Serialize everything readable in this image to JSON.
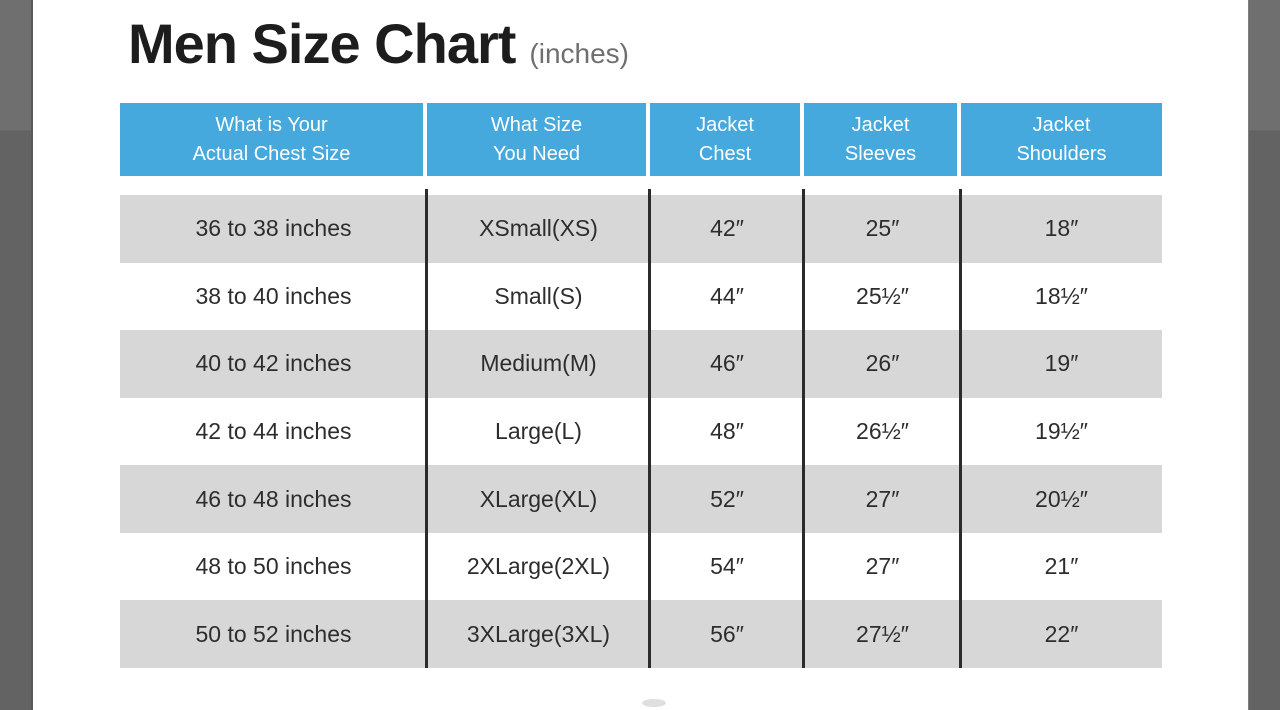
{
  "title": {
    "text": "Men Size Chart",
    "suffix": "(inches)"
  },
  "colors": {
    "header_bg": "#46a9dd",
    "header_text": "#ffffff",
    "row_alt": "#d7d7d8",
    "divider": "#2b2b2b",
    "pillar_top": "#6f6f6f",
    "pillar_bottom": "#636363",
    "title_color": "#1d1d1d",
    "subtitle_color": "#6f6f6f",
    "cell_color": "#2d2d2d"
  },
  "table": {
    "headers": [
      [
        "What is Your",
        "Actual Chest Size"
      ],
      [
        "What Size",
        "You Need"
      ],
      [
        "Jacket",
        "Chest"
      ],
      [
        "Jacket",
        "Sleeves"
      ],
      [
        "Jacket",
        "Shoulders"
      ]
    ]
  },
  "chart_data": {
    "type": "table",
    "title": "Men Size Chart",
    "subtitle": "(inches)",
    "columns": [
      "What is Your Actual Chest Size",
      "What Size You Need",
      "Jacket Chest",
      "Jacket Sleeves",
      "Jacket Shoulders"
    ],
    "rows": [
      [
        "36 to 38 inches",
        "XSmall(XS)",
        "42″",
        "25″",
        "18″"
      ],
      [
        "38 to 40 inches",
        "Small(S)",
        "44″",
        "25½″",
        "18½″"
      ],
      [
        "40 to 42 inches",
        "Medium(M)",
        "46″",
        "26″",
        "19″"
      ],
      [
        "42 to 44 inches",
        "Large(L)",
        "48″",
        "26½″",
        "19½″"
      ],
      [
        "46 to 48 inches",
        "XLarge(XL)",
        "52″",
        "27″",
        "20½″"
      ],
      [
        "48 to 50 inches",
        "2XLarge(2XL)",
        "54″",
        "27″",
        "21″"
      ],
      [
        "50 to 52 inches",
        "3XLarge(3XL)",
        "56″",
        "27½″",
        "22″"
      ]
    ]
  }
}
